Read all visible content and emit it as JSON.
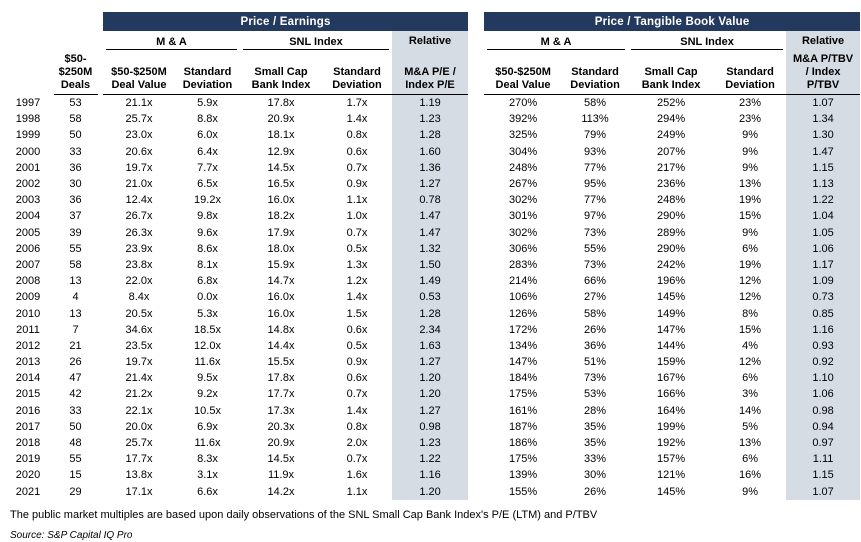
{
  "titles": {
    "pe_panel": "Price / Earnings",
    "ptbv_panel": "Price / Tangible Book Value"
  },
  "headers": {
    "deals_col_lines": [
      "$50-",
      "$250M",
      "Deals"
    ],
    "ma_group": "M & A",
    "snl_group": "SNL Index",
    "relative": "Relative",
    "deal_value_lines": [
      "$50-$250M",
      "Deal Value"
    ],
    "std_dev_lines": [
      "Standard",
      "Deviation"
    ],
    "small_cap_lines": [
      "Small Cap",
      "Bank Index"
    ],
    "pe_relative_sub_lines": [
      "M&A P/E /",
      "Index P/E"
    ],
    "ptbv_relative_sub_lines": [
      "M&A P/TBV",
      "/ Index",
      "P/TBV"
    ]
  },
  "colors": {
    "navy_band": "#24395E",
    "relative_column_bg": "#D6DCE4"
  },
  "rows": [
    {
      "year": "1997",
      "deals": "53",
      "pe": [
        "21.1x",
        "5.9x",
        "17.8x",
        "1.7x",
        "1.19"
      ],
      "ptbv": [
        "270%",
        "58%",
        "252%",
        "23%",
        "1.07"
      ]
    },
    {
      "year": "1998",
      "deals": "58",
      "pe": [
        "25.7x",
        "8.8x",
        "20.9x",
        "1.4x",
        "1.23"
      ],
      "ptbv": [
        "392%",
        "113%",
        "294%",
        "23%",
        "1.34"
      ]
    },
    {
      "year": "1999",
      "deals": "50",
      "pe": [
        "23.0x",
        "6.0x",
        "18.1x",
        "0.8x",
        "1.28"
      ],
      "ptbv": [
        "325%",
        "79%",
        "249%",
        "9%",
        "1.30"
      ]
    },
    {
      "year": "2000",
      "deals": "33",
      "pe": [
        "20.6x",
        "6.4x",
        "12.9x",
        "0.6x",
        "1.60"
      ],
      "ptbv": [
        "304%",
        "93%",
        "207%",
        "9%",
        "1.47"
      ]
    },
    {
      "year": "2001",
      "deals": "36",
      "pe": [
        "19.7x",
        "7.7x",
        "14.5x",
        "0.7x",
        "1.36"
      ],
      "ptbv": [
        "248%",
        "77%",
        "217%",
        "9%",
        "1.15"
      ]
    },
    {
      "year": "2002",
      "deals": "30",
      "pe": [
        "21.0x",
        "6.5x",
        "16.5x",
        "0.9x",
        "1.27"
      ],
      "ptbv": [
        "267%",
        "95%",
        "236%",
        "13%",
        "1.13"
      ]
    },
    {
      "year": "2003",
      "deals": "36",
      "pe": [
        "12.4x",
        "19.2x",
        "16.0x",
        "1.1x",
        "0.78"
      ],
      "ptbv": [
        "302%",
        "77%",
        "248%",
        "19%",
        "1.22"
      ]
    },
    {
      "year": "2004",
      "deals": "37",
      "pe": [
        "26.7x",
        "9.8x",
        "18.2x",
        "1.0x",
        "1.47"
      ],
      "ptbv": [
        "301%",
        "97%",
        "290%",
        "15%",
        "1.04"
      ]
    },
    {
      "year": "2005",
      "deals": "39",
      "pe": [
        "26.3x",
        "9.6x",
        "17.9x",
        "0.7x",
        "1.47"
      ],
      "ptbv": [
        "302%",
        "73%",
        "289%",
        "9%",
        "1.05"
      ]
    },
    {
      "year": "2006",
      "deals": "55",
      "pe": [
        "23.9x",
        "8.6x",
        "18.0x",
        "0.5x",
        "1.32"
      ],
      "ptbv": [
        "306%",
        "55%",
        "290%",
        "6%",
        "1.06"
      ]
    },
    {
      "year": "2007",
      "deals": "58",
      "pe": [
        "23.8x",
        "8.1x",
        "15.9x",
        "1.3x",
        "1.50"
      ],
      "ptbv": [
        "283%",
        "73%",
        "242%",
        "19%",
        "1.17"
      ]
    },
    {
      "year": "2008",
      "deals": "13",
      "pe": [
        "22.0x",
        "6.8x",
        "14.7x",
        "1.2x",
        "1.49"
      ],
      "ptbv": [
        "214%",
        "66%",
        "196%",
        "12%",
        "1.09"
      ]
    },
    {
      "year": "2009",
      "deals": "4",
      "pe": [
        "8.4x",
        "0.0x",
        "16.0x",
        "1.4x",
        "0.53"
      ],
      "ptbv": [
        "106%",
        "27%",
        "145%",
        "12%",
        "0.73"
      ]
    },
    {
      "year": "2010",
      "deals": "13",
      "pe": [
        "20.5x",
        "5.3x",
        "16.0x",
        "1.5x",
        "1.28"
      ],
      "ptbv": [
        "126%",
        "58%",
        "149%",
        "8%",
        "0.85"
      ]
    },
    {
      "year": "2011",
      "deals": "7",
      "pe": [
        "34.6x",
        "18.5x",
        "14.8x",
        "0.6x",
        "2.34"
      ],
      "ptbv": [
        "172%",
        "26%",
        "147%",
        "15%",
        "1.16"
      ]
    },
    {
      "year": "2012",
      "deals": "21",
      "pe": [
        "23.5x",
        "12.0x",
        "14.4x",
        "0.5x",
        "1.63"
      ],
      "ptbv": [
        "134%",
        "36%",
        "144%",
        "4%",
        "0.93"
      ]
    },
    {
      "year": "2013",
      "deals": "26",
      "pe": [
        "19.7x",
        "11.6x",
        "15.5x",
        "0.9x",
        "1.27"
      ],
      "ptbv": [
        "147%",
        "51%",
        "159%",
        "12%",
        "0.92"
      ]
    },
    {
      "year": "2014",
      "deals": "47",
      "pe": [
        "21.4x",
        "9.5x",
        "17.8x",
        "0.6x",
        "1.20"
      ],
      "ptbv": [
        "184%",
        "73%",
        "167%",
        "6%",
        "1.10"
      ]
    },
    {
      "year": "2015",
      "deals": "42",
      "pe": [
        "21.2x",
        "9.2x",
        "17.7x",
        "0.7x",
        "1.20"
      ],
      "ptbv": [
        "175%",
        "53%",
        "166%",
        "3%",
        "1.06"
      ]
    },
    {
      "year": "2016",
      "deals": "33",
      "pe": [
        "22.1x",
        "10.5x",
        "17.3x",
        "1.4x",
        "1.27"
      ],
      "ptbv": [
        "161%",
        "28%",
        "164%",
        "14%",
        "0.98"
      ]
    },
    {
      "year": "2017",
      "deals": "50",
      "pe": [
        "20.0x",
        "6.9x",
        "20.3x",
        "0.8x",
        "0.98"
      ],
      "ptbv": [
        "187%",
        "35%",
        "199%",
        "5%",
        "0.94"
      ]
    },
    {
      "year": "2018",
      "deals": "48",
      "pe": [
        "25.7x",
        "11.6x",
        "20.9x",
        "2.0x",
        "1.23"
      ],
      "ptbv": [
        "186%",
        "35%",
        "192%",
        "13%",
        "0.97"
      ]
    },
    {
      "year": "2019",
      "deals": "55",
      "pe": [
        "17.7x",
        "8.3x",
        "14.5x",
        "0.7x",
        "1.22"
      ],
      "ptbv": [
        "175%",
        "33%",
        "157%",
        "6%",
        "1.11"
      ]
    },
    {
      "year": "2020",
      "deals": "15",
      "pe": [
        "13.8x",
        "3.1x",
        "11.9x",
        "1.6x",
        "1.16"
      ],
      "ptbv": [
        "139%",
        "30%",
        "121%",
        "16%",
        "1.15"
      ]
    },
    {
      "year": "2021",
      "deals": "29",
      "pe": [
        "17.1x",
        "6.6x",
        "14.2x",
        "1.1x",
        "1.20"
      ],
      "ptbv": [
        "155%",
        "26%",
        "145%",
        "9%",
        "1.07"
      ]
    }
  ],
  "footer": {
    "footnote": "The public market multiples are based upon daily observations of the SNL Small Cap Bank Index's P/E (LTM) and P/TBV",
    "source": "Source: S&P Capital IQ Pro"
  }
}
